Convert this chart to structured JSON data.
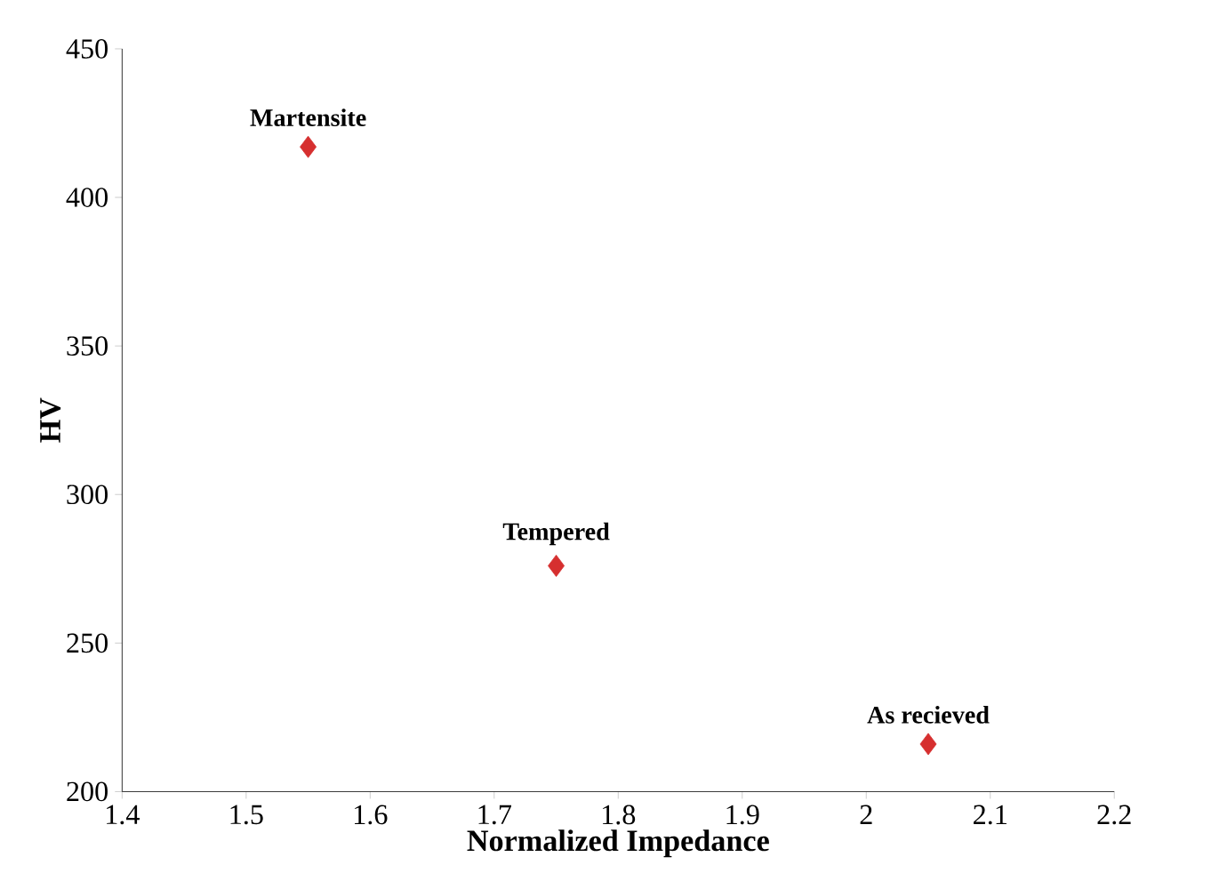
{
  "chart_data": {
    "type": "scatter",
    "xlabel": "Normalized Impedance",
    "ylabel": "HV",
    "x": [
      1.55,
      1.75,
      2.05
    ],
    "values": [
      417,
      276,
      216
    ],
    "color": "#d62f2f",
    "marker": "diamond",
    "grid": false,
    "xlim": [
      1.4,
      2.2
    ],
    "xticks": [
      1.4,
      1.5,
      1.6,
      1.7,
      1.8,
      1.9,
      2,
      2.1,
      2.2
    ],
    "ylim": [
      200,
      450
    ],
    "yticks": [
      200,
      250,
      300,
      350,
      400,
      450
    ],
    "annotations": [
      {
        "text": "Martensite",
        "x": 1.55,
        "y": 417
      },
      {
        "text": "Tempered",
        "x": 1.75,
        "y": 276
      },
      {
        "text": "As recieved",
        "x": 2.05,
        "y": 216
      }
    ]
  }
}
